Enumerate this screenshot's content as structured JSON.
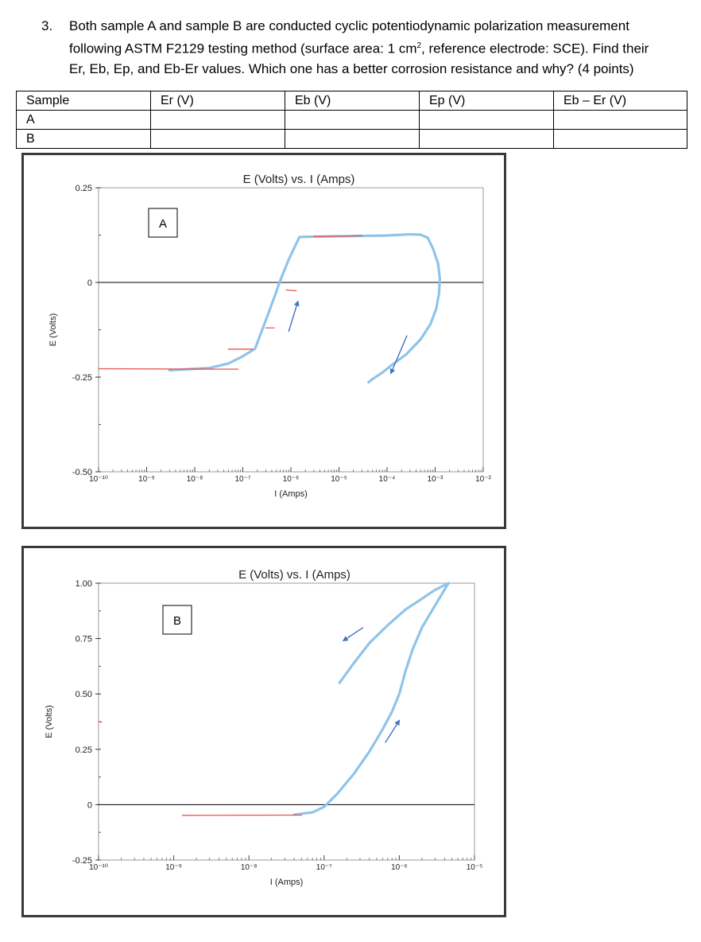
{
  "question": {
    "number": "3.",
    "line1": "Both sample A and sample B are conducted cyclic potentiodynamic polarization measurement",
    "line2_before": "following ASTM F2129 testing method (surface area: 1 cm",
    "line2_sup": "2",
    "line2_after": ", reference electrode: SCE).  Find their",
    "line3": "Er, Eb, Ep, and Eb-Er values. Which one has a better corrosion resistance and why? (4 points)"
  },
  "table": {
    "headers": [
      "Sample",
      "Er (V)",
      "Eb (V)",
      "Ep (V)",
      "Eb – Er (V)"
    ],
    "rows": [
      [
        "A",
        "",
        "",
        "",
        ""
      ],
      [
        "B",
        "",
        "",
        "",
        ""
      ]
    ]
  },
  "colors": {
    "forward": "#8ec4ea",
    "red": "#e8534c",
    "arrow": "#4472c4",
    "zero": "#000000"
  },
  "chart_data": [
    {
      "type": "line",
      "title": "E (Volts) vs. I (Amps)",
      "panel_label": "A",
      "xlabel": "I (Amps)",
      "ylabel": "E (Volts)",
      "xscale": "log",
      "xlim": [
        1e-10,
        0.01
      ],
      "ylim": [
        -0.5,
        0.25
      ],
      "xtick_exponents": [
        -10,
        -9,
        -8,
        -7,
        -6,
        -5,
        -4,
        -3,
        -2
      ],
      "yticks": [
        "0.25",
        "0",
        "-0.25",
        "-0.50"
      ],
      "ytick_values": [
        0.25,
        0,
        -0.25,
        -0.5
      ],
      "series": [
        {
          "role": "forward",
          "color": "#8ec4ea",
          "x": [
            3e-09,
            1e-08,
            2e-08,
            5e-08,
            1e-07,
            1.8e-07,
            3e-07,
            4.5e-07,
            6e-07,
            9e-07,
            1.5e-06,
            3e-06,
            1e-05,
            3e-05,
            0.0001,
            0.0003,
            0.0005,
            0.0007
          ],
          "y": [
            -0.232,
            -0.228,
            -0.226,
            -0.214,
            -0.195,
            -0.175,
            -0.1,
            -0.04,
            0.005,
            0.06,
            0.12,
            0.121,
            0.122,
            0.123,
            0.124,
            0.127,
            0.126,
            0.118
          ]
        },
        {
          "role": "reverse",
          "color": "#8ec4ea",
          "x": [
            0.0007,
            0.0009,
            0.00115,
            0.00125,
            0.0012,
            0.00105,
            0.0008,
            0.0005,
            0.00025,
            0.00012,
            8e-05,
            5e-05,
            4e-05
          ],
          "y": [
            0.118,
            0.09,
            0.05,
            0.01,
            -0.03,
            -0.07,
            -0.11,
            -0.15,
            -0.19,
            -0.22,
            -0.238,
            -0.255,
            -0.265
          ]
        },
        {
          "role": "red",
          "color": "#e8534c",
          "x": [
            1e-10,
            3e-08,
            8e-08
          ],
          "y": [
            -0.228,
            -0.229,
            -0.229
          ]
        },
        {
          "role": "red",
          "color": "#e8534c",
          "x": [
            5e-08,
            1.6e-07
          ],
          "y": [
            -0.176,
            -0.176
          ]
        },
        {
          "role": "red",
          "color": "#e8534c",
          "x": [
            3e-07,
            4.5e-07
          ],
          "y": [
            -0.12,
            -0.12
          ]
        },
        {
          "role": "red",
          "color": "#e8534c",
          "x": [
            8e-07,
            1.3e-06
          ],
          "y": [
            -0.02,
            -0.022
          ]
        },
        {
          "role": "red",
          "color": "#e8534c",
          "x": [
            3e-06,
            1.5e-05,
            3e-05
          ],
          "y": [
            0.121,
            0.122,
            0.124
          ]
        }
      ],
      "arrows": [
        {
          "x1": 9e-07,
          "y1": -0.13,
          "x2": 1.4e-06,
          "y2": -0.05
        },
        {
          "x1": 0.00026,
          "y1": -0.14,
          "x2": 0.00012,
          "y2": -0.24
        }
      ]
    },
    {
      "type": "line",
      "title": "E (Volts) vs. I (Amps)",
      "panel_label": "B",
      "xlabel": "I (Amps)",
      "ylabel": "E (Volts)",
      "xscale": "log",
      "xlim": [
        1e-10,
        1e-05
      ],
      "ylim": [
        -0.25,
        1.0
      ],
      "xtick_exponents": [
        -10,
        -9,
        -8,
        -7,
        -6,
        -5
      ],
      "yticks": [
        "1.00",
        "0.75",
        "0.50",
        "0.25",
        "0",
        "-0.25"
      ],
      "ytick_values": [
        1.0,
        0.75,
        0.5,
        0.25,
        0,
        -0.25
      ],
      "series": [
        {
          "role": "forward",
          "color": "#8ec4ea",
          "x": [
            4e-08,
            7e-08,
            1e-07,
            1.5e-07,
            2.5e-07,
            4e-07,
            6e-07,
            8e-07,
            1e-06,
            1.2e-06,
            1.5e-06,
            2e-06,
            3e-06,
            4.5e-06
          ],
          "y": [
            -0.045,
            -0.035,
            -0.01,
            0.05,
            0.14,
            0.24,
            0.34,
            0.42,
            0.5,
            0.6,
            0.7,
            0.8,
            0.9,
            1.0
          ]
        },
        {
          "role": "reverse",
          "color": "#8ec4ea",
          "x": [
            4.5e-06,
            3e-06,
            2e-06,
            1.2e-06,
            7e-07,
            4e-07,
            2.5e-07,
            1.6e-07
          ],
          "y": [
            1.0,
            0.97,
            0.93,
            0.88,
            0.81,
            0.73,
            0.64,
            0.55
          ]
        },
        {
          "role": "red",
          "color": "#e8534c",
          "x": [
            1.3e-09,
            5e-08
          ],
          "y": [
            -0.048,
            -0.047
          ]
        },
        {
          "role": "red",
          "color": "#e8534c",
          "x": [
            1e-10,
            1.1e-10
          ],
          "y": [
            0.375,
            0.372
          ]
        }
      ],
      "arrows": [
        {
          "x1": 3.3e-07,
          "y1": 0.8,
          "x2": 1.8e-07,
          "y2": 0.74
        },
        {
          "x1": 6.5e-07,
          "y1": 0.28,
          "x2": 1e-06,
          "y2": 0.38
        }
      ]
    }
  ]
}
